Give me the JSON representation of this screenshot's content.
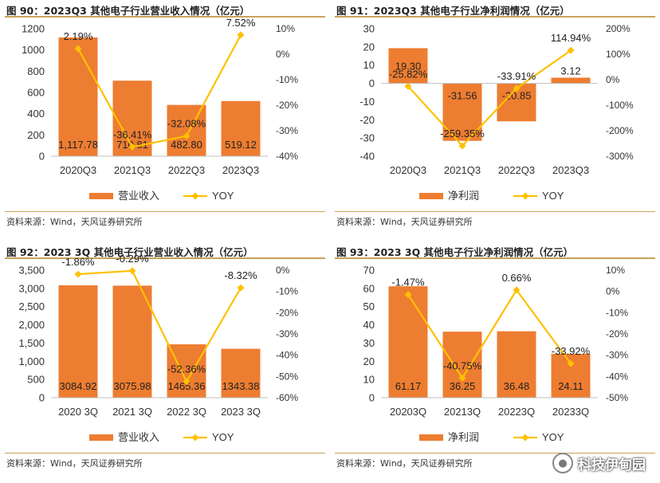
{
  "source": "资料来源：Wind，天风证券研究所",
  "watermark": {
    "icon": "wechat-icon",
    "text": "科技伊甸园"
  },
  "colors": {
    "bar": "#ed7d31",
    "line": "#ffc000",
    "marker": "#ffc000",
    "rule": "#c8a25a"
  },
  "chart_data": [
    {
      "type": "bar",
      "title": "图 90：2023Q3 其他电子行业营业收入情况（亿元）",
      "categories": [
        "2020Q3",
        "2021Q3",
        "2022Q3",
        "2023Q3"
      ],
      "series": [
        {
          "name": "营业收入",
          "kind": "bar",
          "axis": "left",
          "values": [
            1117.78,
            710.81,
            482.8,
            519.12
          ],
          "labels": [
            "1,117.78",
            "710.81",
            "482.80",
            "519.12"
          ]
        },
        {
          "name": "YOY",
          "kind": "line",
          "axis": "right",
          "values": [
            2.19,
            -36.41,
            -32.08,
            7.52
          ],
          "labels": [
            "2.19%",
            "-36.41%",
            "-32.08%",
            "7.52%"
          ]
        }
      ],
      "ylim": [
        0,
        1200
      ],
      "yticks": [
        "0",
        "200",
        "400",
        "600",
        "800",
        "1000",
        "1200"
      ],
      "y2lim": [
        -40,
        10
      ],
      "y2ticks": [
        "-40%",
        "-30%",
        "-20%",
        "-10%",
        "0%",
        "10%"
      ]
    },
    {
      "type": "bar",
      "title": "图 91：2023Q3 其他电子行业净利润情况（亿元）",
      "categories": [
        "2020Q3",
        "2021Q3",
        "2022Q3",
        "2023Q3"
      ],
      "series": [
        {
          "name": "净利润",
          "kind": "bar",
          "axis": "left",
          "values": [
            19.3,
            -31.56,
            -20.85,
            3.12
          ],
          "labels": [
            "19.30",
            "-31.56",
            "-20.85",
            "3.12"
          ]
        },
        {
          "name": "YOY",
          "kind": "line",
          "axis": "right",
          "values": [
            -25.82,
            -259.35,
            -33.91,
            114.94
          ],
          "labels": [
            "-25.82%",
            "-259.35%",
            "-33.91%",
            "114.94%"
          ]
        }
      ],
      "ylim": [
        -40,
        30
      ],
      "yticks": [
        "-40",
        "-30",
        "-20",
        "-10",
        "0",
        "10",
        "20",
        "30"
      ],
      "y2lim": [
        -300,
        200
      ],
      "y2ticks": [
        "-300%",
        "-200%",
        "-100%",
        "0%",
        "100%",
        "200%"
      ]
    },
    {
      "type": "bar",
      "title": "图 92：2023 3Q 其他电子行业营业收入情况（亿元）",
      "categories": [
        "2020 3Q",
        "2021 3Q",
        "2022 3Q",
        "2023 3Q"
      ],
      "series": [
        {
          "name": "营业收入",
          "kind": "bar",
          "axis": "left",
          "values": [
            3084.92,
            3075.98,
            1465.36,
            1343.38
          ],
          "labels": [
            "3084.92",
            "3075.98",
            "1465.36",
            "1343.38"
          ]
        },
        {
          "name": "YOY",
          "kind": "line",
          "axis": "right",
          "values": [
            -1.86,
            -0.29,
            -52.36,
            -8.32
          ],
          "labels": [
            "-1.86%",
            "-0.29%",
            "-52.36%",
            "-8.32%"
          ]
        }
      ],
      "ylim": [
        0,
        3500
      ],
      "yticks": [
        "0",
        "500",
        "1,000",
        "1,500",
        "2,000",
        "2,500",
        "3,000",
        "3,500"
      ],
      "y2lim": [
        -60,
        0
      ],
      "y2ticks": [
        "-60%",
        "-50%",
        "-40%",
        "-30%",
        "-20%",
        "-10%",
        "0%"
      ]
    },
    {
      "type": "bar",
      "title": "图 93：2023 3Q 其他电子行业净利润情况（亿元）",
      "categories": [
        "20203Q",
        "20213Q",
        "20223Q",
        "20233Q"
      ],
      "series": [
        {
          "name": "净利润",
          "kind": "bar",
          "axis": "left",
          "values": [
            61.17,
            36.25,
            36.48,
            24.11
          ],
          "labels": [
            "61.17",
            "36.25",
            "36.48",
            "24.11"
          ]
        },
        {
          "name": "YOY",
          "kind": "line",
          "axis": "right",
          "values": [
            -1.47,
            -40.75,
            0.66,
            -33.92
          ],
          "labels": [
            "-1.47%",
            "-40.75%",
            "0.66%",
            "-33.92%"
          ]
        }
      ],
      "ylim": [
        0,
        70
      ],
      "yticks": [
        "0",
        "10",
        "20",
        "30",
        "40",
        "50",
        "60",
        "70"
      ],
      "y2lim": [
        -50,
        10
      ],
      "y2ticks": [
        "-50%",
        "-40%",
        "-30%",
        "-20%",
        "-10%",
        "0%",
        "10%"
      ]
    }
  ]
}
